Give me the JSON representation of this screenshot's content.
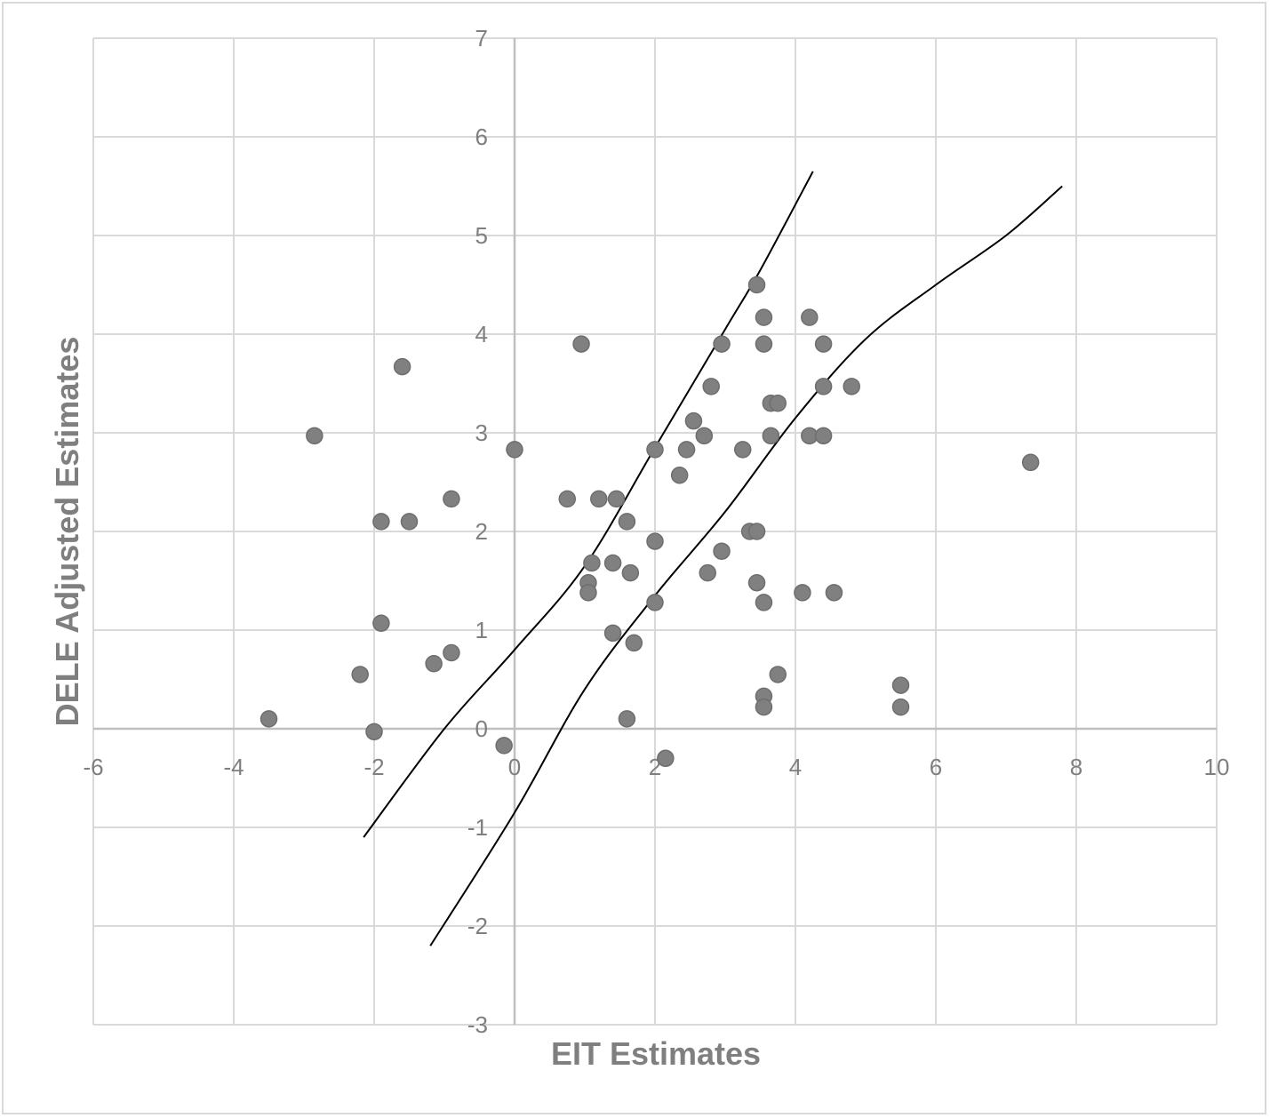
{
  "chart_data": {
    "type": "scatter",
    "xlabel": "EIT Estimates",
    "ylabel": "DELE Adjusted Estimates",
    "xlim": [
      -6,
      10
    ],
    "ylim": [
      -3,
      7
    ],
    "grid": true,
    "x_ticks": [
      "-6",
      "-4",
      "-2",
      "0",
      "2",
      "4",
      "6",
      "8",
      "10"
    ],
    "y_ticks": [
      "-3",
      "-2",
      "-1",
      "0",
      "1",
      "2",
      "3",
      "4",
      "5",
      "6",
      "7"
    ],
    "colors": {
      "point": "#808080",
      "point_stroke": "#6e6e6e",
      "line": "#000000",
      "grid": "#d9d9d9",
      "axis": "#bfbfbf"
    },
    "points": [
      [
        -3.5,
        0.1
      ],
      [
        -2.85,
        2.97
      ],
      [
        -2.2,
        0.55
      ],
      [
        -2.0,
        -0.03
      ],
      [
        -1.9,
        2.1
      ],
      [
        -1.9,
        1.07
      ],
      [
        -1.6,
        3.67
      ],
      [
        -1.5,
        2.1
      ],
      [
        -1.15,
        0.66
      ],
      [
        -0.9,
        2.33
      ],
      [
        -0.9,
        0.77
      ],
      [
        -0.15,
        -0.17
      ],
      [
        0.0,
        2.83
      ],
      [
        0.75,
        2.33
      ],
      [
        0.95,
        3.9
      ],
      [
        1.05,
        1.48
      ],
      [
        1.05,
        1.38
      ],
      [
        1.1,
        1.68
      ],
      [
        1.2,
        2.33
      ],
      [
        1.4,
        1.68
      ],
      [
        1.4,
        0.97
      ],
      [
        1.45,
        2.33
      ],
      [
        1.6,
        2.1
      ],
      [
        1.6,
        0.1
      ],
      [
        1.65,
        1.58
      ],
      [
        1.7,
        0.87
      ],
      [
        2.0,
        2.83
      ],
      [
        2.0,
        1.9
      ],
      [
        2.0,
        1.28
      ],
      [
        2.15,
        -0.3
      ],
      [
        2.35,
        2.57
      ],
      [
        2.45,
        2.83
      ],
      [
        2.55,
        3.12
      ],
      [
        2.7,
        2.97
      ],
      [
        2.75,
        1.58
      ],
      [
        2.8,
        3.47
      ],
      [
        2.95,
        3.9
      ],
      [
        2.95,
        1.8
      ],
      [
        3.25,
        2.83
      ],
      [
        3.35,
        2.0
      ],
      [
        3.45,
        4.5
      ],
      [
        3.45,
        2.0
      ],
      [
        3.45,
        1.48
      ],
      [
        3.55,
        4.17
      ],
      [
        3.55,
        3.9
      ],
      [
        3.55,
        1.28
      ],
      [
        3.55,
        0.33
      ],
      [
        3.55,
        0.22
      ],
      [
        3.65,
        3.3
      ],
      [
        3.65,
        2.97
      ],
      [
        3.75,
        3.3
      ],
      [
        3.75,
        0.55
      ],
      [
        4.1,
        1.38
      ],
      [
        4.2,
        4.17
      ],
      [
        4.2,
        2.97
      ],
      [
        4.4,
        3.9
      ],
      [
        4.4,
        3.47
      ],
      [
        4.4,
        2.97
      ],
      [
        4.55,
        1.38
      ],
      [
        4.8,
        3.47
      ],
      [
        5.5,
        0.44
      ],
      [
        5.5,
        0.22
      ],
      [
        7.35,
        2.7
      ]
    ],
    "curves": [
      {
        "points": [
          [
            -2.15,
            -1.1
          ],
          [
            -1.0,
            0.0
          ],
          [
            0.0,
            0.8
          ],
          [
            1.0,
            1.65
          ],
          [
            2.0,
            2.85
          ],
          [
            3.0,
            4.05
          ],
          [
            3.5,
            4.65
          ],
          [
            4.25,
            5.65
          ]
        ]
      },
      {
        "points": [
          [
            -1.2,
            -2.2
          ],
          [
            0.0,
            -0.85
          ],
          [
            1.0,
            0.4
          ],
          [
            2.0,
            1.35
          ],
          [
            3.0,
            2.2
          ],
          [
            4.0,
            3.15
          ],
          [
            5.0,
            3.95
          ],
          [
            6.0,
            4.5
          ],
          [
            7.0,
            5.0
          ],
          [
            7.8,
            5.5
          ]
        ]
      }
    ]
  }
}
